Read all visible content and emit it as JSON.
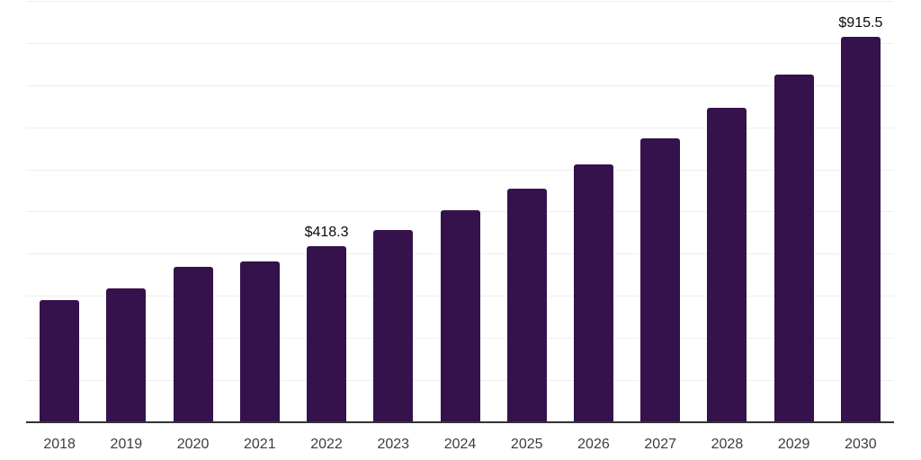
{
  "chart_data": {
    "type": "bar",
    "title": "",
    "xlabel": "",
    "ylabel": "",
    "categories": [
      "2018",
      "2019",
      "2020",
      "2021",
      "2022",
      "2023",
      "2024",
      "2025",
      "2026",
      "2027",
      "2028",
      "2029",
      "2030"
    ],
    "values": [
      289,
      317,
      368,
      381,
      418.3,
      457,
      504,
      555,
      613,
      674,
      747,
      825,
      915.5
    ],
    "data_labels": [
      null,
      null,
      null,
      null,
      "$418.3",
      null,
      null,
      null,
      null,
      null,
      null,
      null,
      "$915.5"
    ],
    "ylim": [
      0,
      1000
    ],
    "grid_step": 100,
    "grid": true,
    "legend": false,
    "colors": {
      "bar": "#35124B",
      "gridline": "#EEEDF0",
      "axis": "#333333",
      "data_label": "#0A0A0A",
      "tick_label": "#3D3D3D",
      "background": "#FFFFFF"
    }
  }
}
